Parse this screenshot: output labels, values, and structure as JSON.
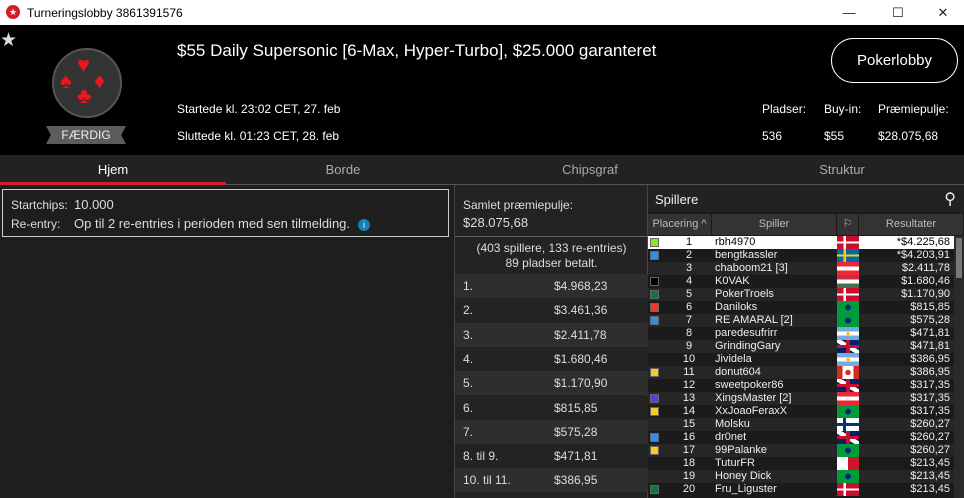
{
  "window": {
    "title": "Turneringslobby 3861391576",
    "min": "—",
    "max": "☐",
    "close": "✕"
  },
  "header": {
    "title": "$55 Daily Supersonic [6-Max, Hyper-Turbo], $25.000 garanteret",
    "started": "Startede kl. 23:02 CET, 27. feb",
    "ended": "Sluttede kl. 01:23 CET, 28. feb",
    "status": "FÆRDIG",
    "lobby_button": "Pokerlobby",
    "stats": [
      {
        "label": "Pladser:",
        "value": "536"
      },
      {
        "label": "Buy-in:",
        "value": "$55"
      },
      {
        "label": "Præmiepulje:",
        "value": "$28.075,68"
      }
    ]
  },
  "tabs": [
    {
      "label": "Hjem",
      "active": true
    },
    {
      "label": "Borde"
    },
    {
      "label": "Chipsgraf"
    },
    {
      "label": "Struktur"
    }
  ],
  "info": {
    "startchips_label": "Startchips:",
    "startchips": "10.000",
    "reentry_label": "Re-entry:",
    "reentry": "Op til 2 re-entries i perioden med sen tilmelding."
  },
  "prize": {
    "label": "Samlet præmiepulje:",
    "total": "$28.075,68",
    "summary1": "(403 spillere, 133 re-entries)",
    "summary2": "89 pladser betalt.",
    "rows": [
      {
        "p": "1.",
        "a": "$4.968,23"
      },
      {
        "p": "2.",
        "a": "$3.461,36"
      },
      {
        "p": "3.",
        "a": "$2.411,78"
      },
      {
        "p": "4.",
        "a": "$1.680,46"
      },
      {
        "p": "5.",
        "a": "$1.170,90"
      },
      {
        "p": "6.",
        "a": "$815,85"
      },
      {
        "p": "7.",
        "a": "$575,28"
      },
      {
        "p": "8. til 9.",
        "a": "$471,81"
      },
      {
        "p": "10. til 11.",
        "a": "$386,95"
      }
    ]
  },
  "players": {
    "title": "Spillere",
    "columns": [
      "Placering",
      "Spiller",
      "",
      "Resultater"
    ],
    "rows": [
      {
        "rank": "1",
        "name": "rbh4970",
        "flag": "dk",
        "result": "*$4.225,68",
        "color": "#8ee62a"
      },
      {
        "rank": "2",
        "name": "bengtkassler",
        "flag": "se",
        "result": "*$4.203,91",
        "color": "#2f8ff0"
      },
      {
        "rank": "3",
        "name": "chaboom21 [3]",
        "flag": "at",
        "result": "$2.411,78",
        "color": ""
      },
      {
        "rank": "4",
        "name": "K0VAK",
        "flag": "hu",
        "result": "$1.680,46",
        "color": "#000000"
      },
      {
        "rank": "5",
        "name": "PokerTroels",
        "flag": "dk",
        "result": "$1.170,90",
        "color": "#0a7a3a"
      },
      {
        "rank": "6",
        "name": "Daniloks",
        "flag": "br",
        "result": "$815,85",
        "color": "#f03a2a"
      },
      {
        "rank": "7",
        "name": "RE AMARAL [2]",
        "flag": "br",
        "result": "$575,28",
        "color": "#2f8ff0"
      },
      {
        "rank": "8",
        "name": "paredesufrirr",
        "flag": "ar",
        "result": "$471,81",
        "color": ""
      },
      {
        "rank": "9",
        "name": "GrindingGary",
        "flag": "gb",
        "result": "$471,81",
        "color": ""
      },
      {
        "rank": "10",
        "name": "Jividela",
        "flag": "ar",
        "result": "$386,95",
        "color": ""
      },
      {
        "rank": "11",
        "name": "donut604",
        "flag": "ca",
        "result": "$386,95",
        "color": "#f5cc1f"
      },
      {
        "rank": "12",
        "name": "sweetpoker86",
        "flag": "gb",
        "result": "$317,35",
        "color": ""
      },
      {
        "rank": "13",
        "name": "XingsMaster [2]",
        "flag": "at",
        "result": "$317,35",
        "color": "#5a3af0"
      },
      {
        "rank": "14",
        "name": "XxJoaoFeraxX",
        "flag": "br",
        "result": "$317,35",
        "color": "#f5cc1f"
      },
      {
        "rank": "15",
        "name": "Molsku",
        "flag": "fi",
        "result": "$260,27",
        "color": ""
      },
      {
        "rank": "16",
        "name": "dr0net",
        "flag": "gb",
        "result": "$260,27",
        "color": "#2f8ff0"
      },
      {
        "rank": "17",
        "name": "99Palanke",
        "flag": "br",
        "result": "$260,27",
        "color": "#f5cc1f"
      },
      {
        "rank": "18",
        "name": "TuturFR",
        "flag": "mt",
        "result": "$213,45",
        "color": ""
      },
      {
        "rank": "19",
        "name": "Honey Dick",
        "flag": "br",
        "result": "$213,45",
        "color": ""
      },
      {
        "rank": "20",
        "name": "Fru_Liguster",
        "flag": "dk",
        "result": "$213,45",
        "color": "#0a7a3a"
      }
    ]
  }
}
